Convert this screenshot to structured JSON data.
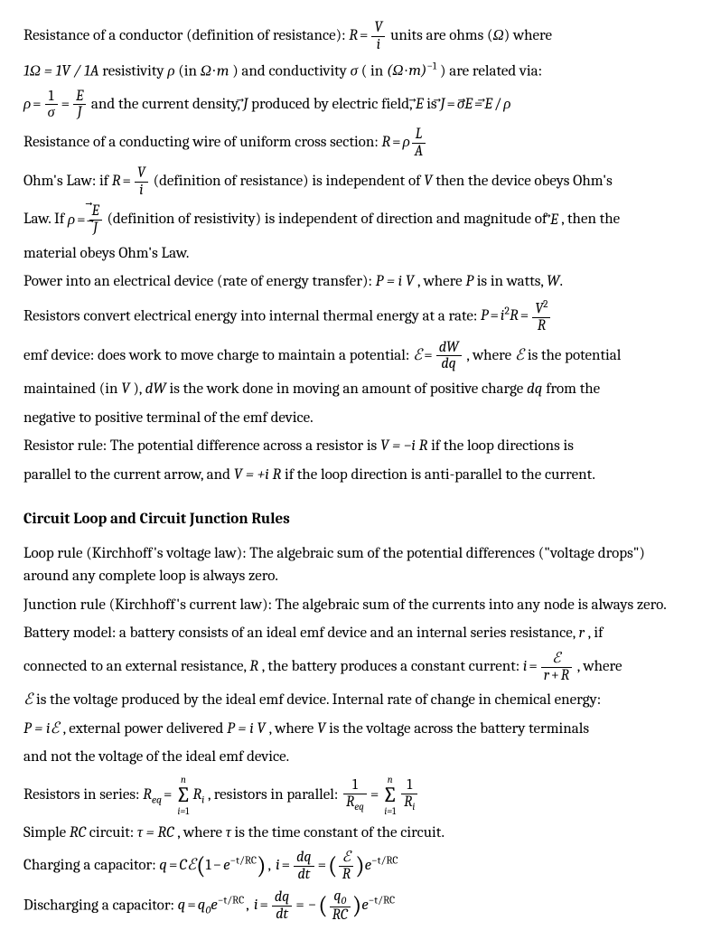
{
  "p1a": "Resistance of a conductor (definition of resistance): ",
  "p1b": " units are ohms (",
  "p1c": ") where",
  "p2a": " resistivity ",
  "p2b": " (in ",
  "p2c": ") and conductivity ",
  "p2d": " ( in ",
  "p2e": ") are related via:",
  "p3a": " and the current density, ",
  "p3b": " produced by electric field, ",
  "p3c": " is ",
  "p4": "Resistance of a conducting wire of uniform cross section: ",
  "p5a": "Ohm's Law: if ",
  "p5b": " (definition of resistance) is independent of ",
  "p5c": " then the device obeys Ohm's",
  "p6a": "Law.  If ",
  "p6b": " (definition of resistivity) is independent of direction and magnitude of ",
  "p6c": ", then the",
  "p7": "material obeys Ohm's Law.",
  "p8a": "Power into an electrical device (rate of energy transfer): ",
  "p8b": ", where ",
  "p8c": " is in watts, ",
  "p9": "Resistors convert electrical energy into internal thermal energy at a rate: ",
  "p10a": "emf device: does work to move charge to maintain a potential: ",
  "p10b": ", where ",
  "p10c": " is the potential",
  "p11a": "maintained (in ",
  "p11b": "), ",
  "p11c": " is the work done in moving an amount of positive charge ",
  "p11d": " from the",
  "p12": "negative to positive terminal of the emf device.",
  "p13a": "Resistor rule: The potential difference across a resistor is ",
  "p13b": " if the loop directions is",
  "p14a": "parallel to the current arrow, and ",
  "p14b": " if the loop direction is anti-parallel to the current.",
  "h1": "Circuit Loop and Circuit Junction Rules",
  "p15": "Loop rule (Kirchhoff's voltage law): The algebraic sum of the potential differences (\"voltage drops\") around any complete loop is always zero.",
  "p16": "Junction rule (Kirchhoff's current law): The algebraic sum of the currents into any node is always zero.",
  "p17a": "Battery model: a battery consists of an ideal emf device and an internal series resistance, ",
  "p17b": ", if",
  "p18a": "connected to an external resistance, ",
  "p18b": ", the battery produces a constant current: ",
  "p18c": ", where",
  "p19a": " is the voltage produced by the ideal emf device. Internal rate of change in chemical energy:",
  "p20a": ", external power delivered ",
  "p20b": ", where ",
  "p20c": " is the voltage across the battery terminals",
  "p21": "and not the voltage of the ideal emf device.",
  "p22a": "Resistors in series: ",
  "p22b": ", resistors in parallel: ",
  "p23a": "Simple ",
  "p23b": " circuit: ",
  "p23c": ", where ",
  "p23d": " is the time constant of the circuit.",
  "p24a": "Charging a capacitor: ",
  "p25a": "Discharging a capacitor: ",
  "sym": {
    "R": "R",
    "V": "V",
    "i": "i",
    "Omega": "Ω",
    "A": "A",
    "rho": "ρ",
    "m": "m",
    "sigma": "σ",
    "one": "1",
    "E": "E",
    "J": "J",
    "L": "L",
    "P": "P",
    "W": "W",
    "two": "2",
    "dW": "dW",
    "dq": "dq",
    "scrE": "ℰ",
    "r": "r",
    "n": "n",
    "eq": "eq",
    "Req": "R",
    "Ri": "R",
    "RC": "RC",
    "tau": "τ",
    "C": "C",
    "q": "q",
    "q0": "q",
    "zero": "0",
    "t": "t",
    "e": "e",
    "dt": "dt",
    "eqsign": "=",
    "slash": "/",
    "dot": "·",
    "minus": "−",
    "plus": "+",
    "comma": ", ",
    "period": ".",
    "neg1": "−1"
  },
  "eq": {
    "oneohm": "1Ω = 1V / 1A",
    "Pi_iV": "P = i V",
    "VmiR": "V = −i R",
    "VpiR": "V = +i R",
    "PiE": "P = iℰ",
    "PiV": "P = i V",
    "tauRC": "τ = RC"
  }
}
